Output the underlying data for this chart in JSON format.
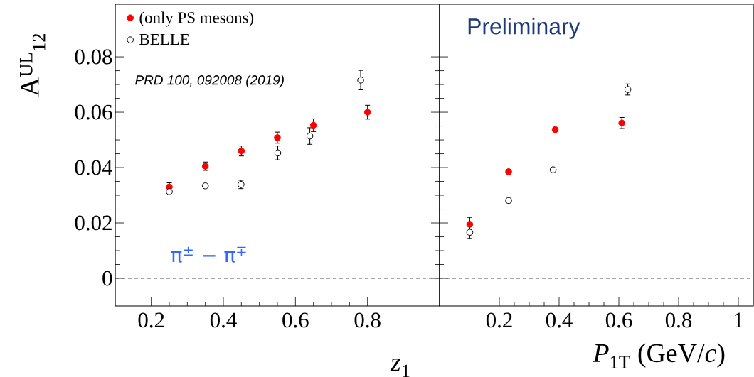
{
  "chart_data": [
    {
      "type": "scatter",
      "xlabel": "*z*$_{1}$",
      "ylabel": "A$^{UL}$$_{12}$",
      "xlim": [
        0.1,
        1.0
      ],
      "ylim": [
        -0.01,
        0.099
      ],
      "xticks": [
        0.2,
        0.4,
        0.6,
        0.8
      ],
      "yticks": [
        0,
        0.02,
        0.04,
        0.06,
        0.08
      ],
      "marker": "circle",
      "legend": "top left",
      "grid": false,
      "ref_lines": [
        {
          "axis": "y",
          "value": 0,
          "line_style": "dashed",
          "color": "#555555"
        }
      ],
      "annotations": [
        "PRD 100, 092008 (2019)",
        "π$^{±}$ − π$^{∓}$"
      ],
      "series": [
        {
          "name": "(only PS mesons)",
          "color": "#ff0000",
          "x": [
            0.25,
            0.35,
            0.45,
            0.55,
            0.65,
            0.8
          ],
          "values": [
            0.033,
            0.0405,
            0.046,
            0.0508,
            0.0553,
            0.06
          ],
          "errors": [
            0.0015,
            0.0015,
            0.0018,
            0.002,
            0.0023,
            0.0025
          ]
        },
        {
          "name": "BELLE",
          "color": "#000000",
          "x": [
            0.25,
            0.35,
            0.449,
            0.551,
            0.64,
            0.781
          ],
          "values": [
            0.0313,
            0.0334,
            0.0339,
            0.0453,
            0.0514,
            0.0716
          ],
          "errors": [
            null,
            null,
            0.0015,
            0.0025,
            0.003,
            0.0035
          ]
        }
      ]
    },
    {
      "type": "scatter",
      "xlabel": "*P*$_{1T}$ (GeV/*c*)",
      "xlim": [
        0.0,
        1.05
      ],
      "ylim": [
        -0.01,
        0.099
      ],
      "xticks": [
        0.2,
        0.4,
        0.6,
        0.8,
        1
      ],
      "yticks": [
        {
          "value": 0,
          "label": null
        },
        {
          "value": 0.02,
          "label": null
        },
        {
          "value": 0.04,
          "label": null
        },
        {
          "value": 0.06,
          "label": null
        },
        {
          "value": 0.08,
          "label": null
        }
      ],
      "marker": "circle",
      "tick_labels": "x",
      "grid": false,
      "ref_lines": [
        {
          "axis": "y",
          "value": 0,
          "line_style": "dashed",
          "color": "#555555"
        }
      ],
      "annotations": [
        "Preliminary"
      ],
      "series": [
        {
          "color": "#ff0000",
          "x": [
            0.101,
            0.231,
            0.387,
            0.61
          ],
          "values": [
            0.0195,
            0.0385,
            0.0537,
            0.0561
          ],
          "errors": [
            0.0025,
            null,
            null,
            0.002
          ]
        },
        {
          "color": "#000000",
          "x": [
            0.101,
            0.231,
            0.38,
            0.63
          ],
          "values": [
            0.0166,
            0.0281,
            0.0392,
            0.0682
          ],
          "errors": [
            0.0022,
            null,
            null,
            0.002
          ]
        }
      ]
    }
  ]
}
